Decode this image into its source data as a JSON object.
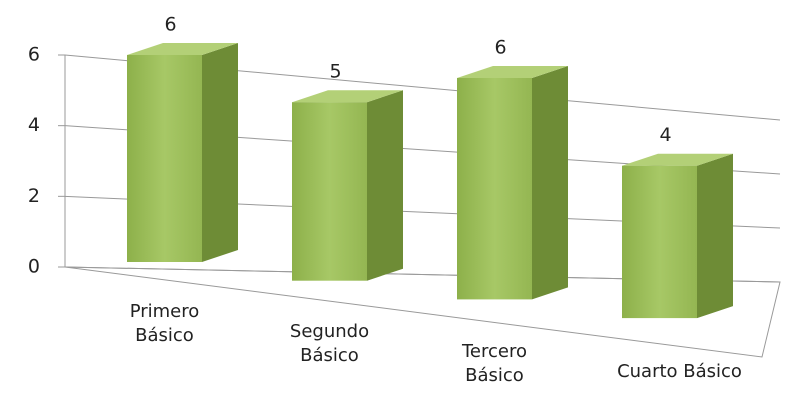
{
  "chart_data": {
    "type": "bar3d",
    "categories": [
      "Primero Básico",
      "Segundo Básico",
      "Tercero Básico",
      "Cuarto Básico"
    ],
    "values": [
      6,
      5,
      6,
      4
    ],
    "color": "#9bbb59",
    "ylim": [
      0,
      6
    ],
    "yticks": [
      0,
      2,
      4,
      6
    ],
    "grid": true
  }
}
